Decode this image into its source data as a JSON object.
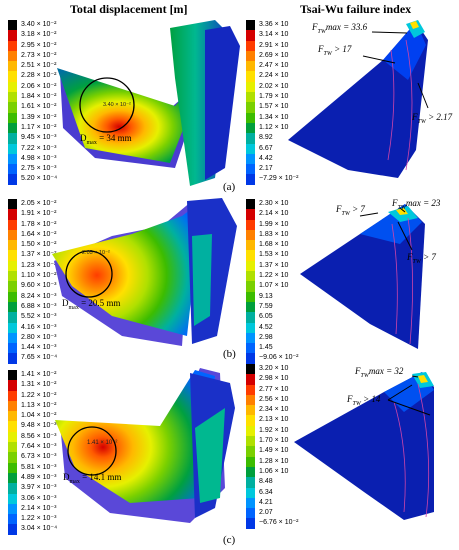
{
  "headers": {
    "left": "Total displacement [m]",
    "right": "Tsai-Wu failure index"
  },
  "colors": [
    "#000000",
    "#d40000",
    "#ff3c00",
    "#ff8000",
    "#ffb800",
    "#ffe000",
    "#e6f000",
    "#b0e000",
    "#7ad000",
    "#3cbc00",
    "#009f3c",
    "#00b0a0",
    "#00c8dc",
    "#0094ff",
    "#0064ff",
    "#0038e6",
    "#1020c0"
  ],
  "rows": [
    {
      "label": "(a)",
      "left_legend": [
        "3.40 × 10⁻²",
        "3.18 × 10⁻²",
        "2.95 × 10⁻²",
        "2.73 × 10⁻²",
        "2.51 × 10⁻²",
        "2.28 × 10⁻²",
        "2.06 × 10⁻²",
        "1.84 × 10⁻²",
        "1.61 × 10⁻²",
        "1.39 × 10⁻²",
        "1.17 × 10⁻²",
        "9.45 × 10⁻³",
        "7.22 × 10⁻³",
        "4.98 × 10⁻³",
        "2.75 × 10⁻³",
        "5.20 × 10⁻⁴"
      ],
      "right_legend": [
        "3.36 × 10",
        "3.14 × 10",
        "2.91 × 10",
        "2.69 × 10",
        "2.47 × 10",
        "2.24 × 10",
        "2.02 × 10",
        "1.79 × 10",
        "1.57 × 10",
        "1.34 × 10",
        "1.12 × 10",
        "8.92",
        "6.67",
        "4.42",
        "2.17",
        "−7.29 × 10⁻²"
      ],
      "marker_value": "3.40 × 10⁻²",
      "dmax": "D",
      "dmax_sub": "max",
      "dmax_rest": " = 34 mm",
      "ann1": "F",
      "ann1_sub": "TW",
      "ann1_rest": "max = 33.6",
      "ann2_rest": " > 17",
      "ann3_rest": " > 2.17"
    },
    {
      "label": "(b)",
      "left_legend": [
        "2.05 × 10⁻²",
        "1.91 × 10⁻²",
        "1.78 × 10⁻²",
        "1.64 × 10⁻²",
        "1.50 × 10⁻²",
        "1.37 × 10⁻²",
        "1.23 × 10⁻²",
        "1.10 × 10⁻²",
        "9.60 × 10⁻³",
        "8.24 × 10⁻³",
        "6.88 × 10⁻³",
        "5.52 × 10⁻³",
        "4.16 × 10⁻³",
        "2.80 × 10⁻³",
        "1.44 × 10⁻³",
        "7.65 × 10⁻⁴"
      ],
      "right_legend": [
        "2.30 × 10",
        "2.14 × 10",
        "1.99 × 10",
        "1.83 × 10",
        "1.68 × 10",
        "1.53 × 10",
        "1.37 × 10",
        "1.22 × 10",
        "1.07 × 10",
        "9.13",
        "7.59",
        "6.05",
        "4.52",
        "2.98",
        "1.45",
        "−9.06 × 10⁻²"
      ],
      "marker_value": "2.05 × 10⁻²",
      "dmax_rest": " = 20.5 mm",
      "ann1_rest": " > 7",
      "ann2_rest": "max = 23",
      "ann3_rest": " > 7"
    },
    {
      "label": "(c)",
      "left_legend": [
        "1.41 × 10⁻²",
        "1.31 × 10⁻²",
        "1.22 × 10⁻²",
        "1.13 × 10⁻²",
        "1.04 × 10⁻²",
        "9.48 × 10⁻³",
        "8.56 × 10⁻³",
        "7.64 × 10⁻³",
        "6.73 × 10⁻³",
        "5.81 × 10⁻³",
        "4.89 × 10⁻³",
        "3.97 × 10⁻³",
        "3.06 × 10⁻³",
        "2.14 × 10⁻³",
        "1.22 × 10⁻³",
        "3.04 × 10⁻⁴"
      ],
      "right_legend": [
        "3.20 × 10",
        "2.98 × 10",
        "2.77 × 10",
        "2.56 × 10",
        "2.34 × 10",
        "2.13 × 10",
        "1.92 × 10",
        "1.70 × 10",
        "1.49 × 10",
        "1.28 × 10",
        "1.06 × 10",
        "8.48",
        "6.34",
        "4.21",
        "2.07",
        "−6.76 × 10⁻²"
      ],
      "marker_value": "1.41 × 10⁻²",
      "dmax_rest": " = 14.1 mm",
      "ann1_rest": "max = 32",
      "ann2_rest": " > 14"
    }
  ]
}
